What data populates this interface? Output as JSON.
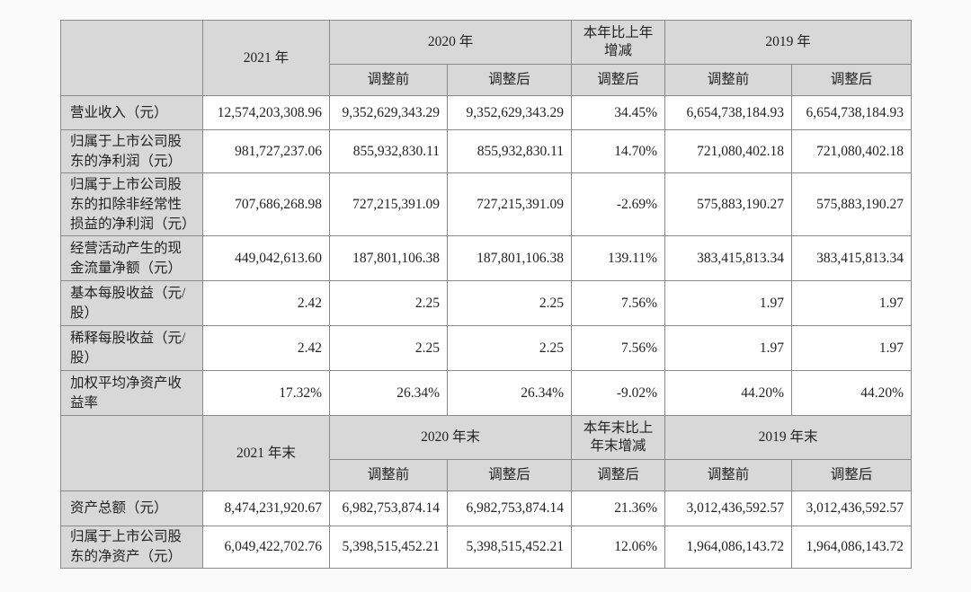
{
  "sections": [
    {
      "header": {
        "first": "2021 年",
        "group1": "2020 年",
        "change": [
          "本年比上年",
          "增减"
        ],
        "group2": "2019 年",
        "sub": [
          "调整前",
          "调整后",
          "调整后",
          "调整前",
          "调整后"
        ]
      },
      "rows": [
        {
          "label": [
            "营业收入（元）"
          ],
          "values": [
            "12,574,203,308.96",
            "9,352,629,343.29",
            "9,352,629,343.29",
            "34.45%",
            "6,654,738,184.93",
            "6,654,738,184.93"
          ]
        },
        {
          "label": [
            "归属于上市公司股",
            "东的净利润（元）"
          ],
          "values": [
            "981,727,237.06",
            "855,932,830.11",
            "855,932,830.11",
            "14.70%",
            "721,080,402.18",
            "721,080,402.18"
          ]
        },
        {
          "label": [
            "归属于上市公司股",
            "东的扣除非经常性",
            "损益的净利润（元）"
          ],
          "values": [
            "707,686,268.98",
            "727,215,391.09",
            "727,215,391.09",
            "-2.69%",
            "575,883,190.27",
            "575,883,190.27"
          ]
        },
        {
          "label": [
            "经营活动产生的现",
            "金流量净额（元）"
          ],
          "values": [
            "449,042,613.60",
            "187,801,106.38",
            "187,801,106.38",
            "139.11%",
            "383,415,813.34",
            "383,415,813.34"
          ]
        },
        {
          "label": [
            "基本每股收益（元/",
            "股）"
          ],
          "values": [
            "2.42",
            "2.25",
            "2.25",
            "7.56%",
            "1.97",
            "1.97"
          ]
        },
        {
          "label": [
            "稀释每股收益（元/",
            "股）"
          ],
          "values": [
            "2.42",
            "2.25",
            "2.25",
            "7.56%",
            "1.97",
            "1.97"
          ]
        },
        {
          "label": [
            "加权平均净资产收",
            "益率"
          ],
          "values": [
            "17.32%",
            "26.34%",
            "26.34%",
            "-9.02%",
            "44.20%",
            "44.20%"
          ]
        }
      ]
    },
    {
      "header": {
        "first": "2021 年末",
        "group1": "2020 年末",
        "change": [
          "本年末比上",
          "年末增减"
        ],
        "group2": "2019 年末",
        "sub": [
          "调整前",
          "调整后",
          "调整后",
          "调整前",
          "调整后"
        ]
      },
      "rows": [
        {
          "label": [
            "资产总额（元）"
          ],
          "values": [
            "8,474,231,920.67",
            "6,982,753,874.14",
            "6,982,753,874.14",
            "21.36%",
            "3,012,436,592.57",
            "3,012,436,592.57"
          ]
        },
        {
          "label": [
            "归属于上市公司股",
            "东的净资产（元）"
          ],
          "values": [
            "6,049,422,702.76",
            "5,398,515,452.21",
            "5,398,515,452.21",
            "12.06%",
            "1,964,086,143.72",
            "1,964,086,143.72"
          ]
        }
      ]
    }
  ]
}
